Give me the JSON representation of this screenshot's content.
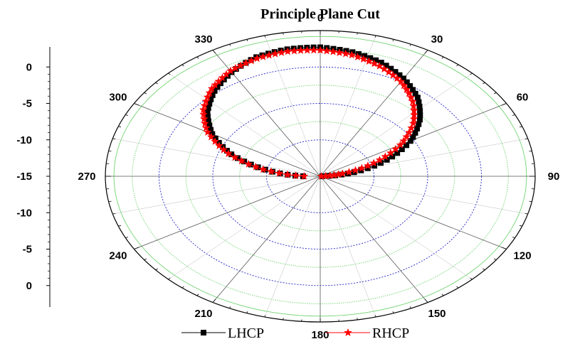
{
  "chart_data": {
    "type": "polar",
    "title": "Principle Plane Cut",
    "angle_ticks": [
      "0",
      "30",
      "60",
      "90",
      "120",
      "150",
      "180",
      "210",
      "240",
      "270",
      "300",
      "330"
    ],
    "radial_axis": {
      "range": [
        -15,
        5
      ],
      "tick_labels_upper": [
        "0",
        "-5",
        "-10",
        "-15"
      ],
      "tick_labels_lower": [
        "-10",
        "-5",
        "0"
      ]
    },
    "legend": {
      "position": "bottom"
    },
    "series": [
      {
        "name": "LHCP",
        "color": "#000000",
        "marker": "square",
        "points": [
          {
            "theta": 270,
            "r": -13.4
          },
          {
            "theta": 280,
            "r": -9.8
          },
          {
            "theta": 290,
            "r": -6.2
          },
          {
            "theta": 300,
            "r": -3.4
          },
          {
            "theta": 310,
            "r": -1.3
          },
          {
            "theta": 320,
            "r": 0.3
          },
          {
            "theta": 330,
            "r": 1.5
          },
          {
            "theta": 340,
            "r": 2.4
          },
          {
            "theta": 350,
            "r": 2.7
          },
          {
            "theta": 0,
            "r": 2.7
          },
          {
            "theta": 10,
            "r": 2.3
          },
          {
            "theta": 20,
            "r": 1.6
          },
          {
            "theta": 30,
            "r": 0.5
          },
          {
            "theta": 40,
            "r": -0.9
          },
          {
            "theta": 50,
            "r": -2.9
          },
          {
            "theta": 60,
            "r": -5.3
          },
          {
            "theta": 70,
            "r": -8.4
          },
          {
            "theta": 80,
            "r": -11.8
          },
          {
            "theta": 88,
            "r": -14.8
          }
        ]
      },
      {
        "name": "RHCP",
        "color": "#ff0000",
        "marker": "star",
        "points": [
          {
            "theta": 270,
            "r": -13.5
          },
          {
            "theta": 280,
            "r": -9.6
          },
          {
            "theta": 290,
            "r": -5.9
          },
          {
            "theta": 300,
            "r": -2.9
          },
          {
            "theta": 310,
            "r": -0.8
          },
          {
            "theta": 320,
            "r": 0.7
          },
          {
            "theta": 330,
            "r": 1.7
          },
          {
            "theta": 340,
            "r": 2.2
          },
          {
            "theta": 350,
            "r": 2.4
          },
          {
            "theta": 0,
            "r": 2.3
          },
          {
            "theta": 10,
            "r": 1.9
          },
          {
            "theta": 20,
            "r": 1.1
          },
          {
            "theta": 30,
            "r": 0.0
          },
          {
            "theta": 40,
            "r": -1.6
          },
          {
            "theta": 50,
            "r": -3.7
          },
          {
            "theta": 60,
            "r": -6.4
          },
          {
            "theta": 70,
            "r": -9.7
          },
          {
            "theta": 80,
            "r": -12.9
          },
          {
            "theta": 87,
            "r": -14.9
          }
        ]
      }
    ],
    "grid": true
  }
}
